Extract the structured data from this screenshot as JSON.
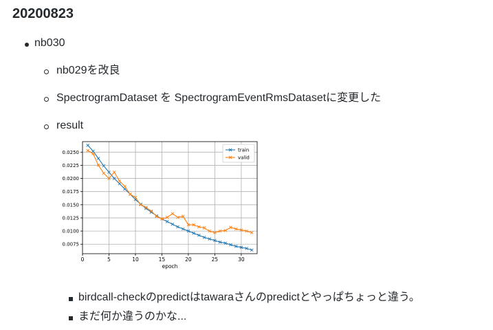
{
  "heading": "20200823",
  "items": {
    "top": "nb030",
    "sub1": "nb029を改良",
    "sub2": "SpectrogramDataset を SpectrogramEventRmsDatasetに変更した",
    "sub3": "result",
    "note1": "birdcall-checkのpredictはtawaraさんのpredictとやっぱちょっと違う。",
    "note2": "まだ何か違うのかな..."
  },
  "chart_data": {
    "type": "line",
    "xlabel": "epoch",
    "ylabel": "",
    "xlim": [
      0,
      33
    ],
    "ylim": [
      0.0057,
      0.027
    ],
    "xticks": [
      0,
      5,
      10,
      15,
      20,
      25,
      30
    ],
    "yticks": [
      0.0075,
      0.01,
      0.0125,
      0.015,
      0.0175,
      0.02,
      0.0225,
      0.025
    ],
    "ytick_labels": [
      "0.0075",
      "0.0100",
      "0.0125",
      "0.0150",
      "0.0175",
      "0.0200",
      "0.0225",
      "0.0250"
    ],
    "grid": true,
    "legend": "top-right",
    "x": [
      1,
      2,
      3,
      4,
      5,
      6,
      7,
      8,
      9,
      10,
      11,
      12,
      13,
      14,
      15,
      16,
      17,
      18,
      19,
      20,
      21,
      22,
      23,
      24,
      25,
      26,
      27,
      28,
      29,
      30,
      31,
      32
    ],
    "series": [
      {
        "name": "train",
        "color": "#1f77b4",
        "values": [
          0.0263,
          0.0252,
          0.0238,
          0.0224,
          0.0212,
          0.02,
          0.019,
          0.018,
          0.017,
          0.016,
          0.0151,
          0.0143,
          0.0136,
          0.0129,
          0.0123,
          0.0118,
          0.0113,
          0.0108,
          0.0104,
          0.01,
          0.0096,
          0.0092,
          0.0088,
          0.0085,
          0.0082,
          0.0079,
          0.0077,
          0.0074,
          0.0071,
          0.0069,
          0.0067,
          0.0064
        ]
      },
      {
        "name": "valid",
        "color": "#ff7f0e",
        "values": [
          0.0253,
          0.0247,
          0.0225,
          0.021,
          0.02,
          0.0212,
          0.0195,
          0.0185,
          0.017,
          0.0164,
          0.015,
          0.0145,
          0.0138,
          0.0128,
          0.0123,
          0.0126,
          0.0133,
          0.0126,
          0.0128,
          0.0112,
          0.0112,
          0.0108,
          0.0106,
          0.01,
          0.0097,
          0.01,
          0.0101,
          0.0107,
          0.0104,
          0.0102,
          0.01,
          0.0097
        ]
      }
    ]
  }
}
